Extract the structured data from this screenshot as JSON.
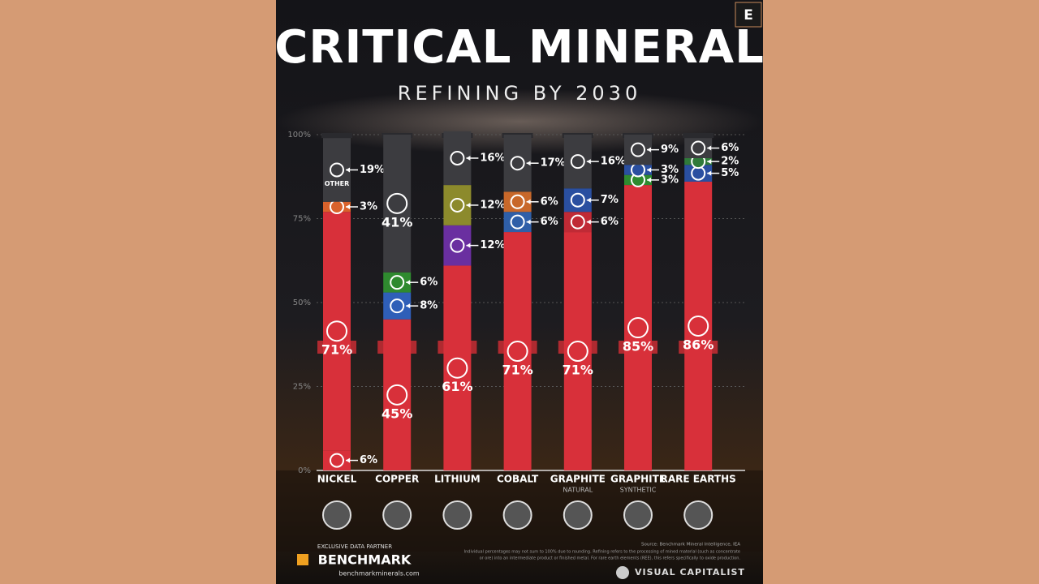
{
  "chart_data": {
    "type": "stacked-bar",
    "title": "CRITICAL MINERAL",
    "subtitle": "REFINING BY 2030",
    "categories": [
      "NICKEL",
      "COPPER",
      "LITHIUM",
      "COBALT",
      "GRAPHITE",
      "GRAPHITE",
      "RARE EARTHS"
    ],
    "sublabels": [
      null,
      null,
      null,
      null,
      "NATURAL",
      "SYNTHETIC",
      null
    ],
    "stacks": [
      [
        {
          "value": 6,
          "label": "6%",
          "color": "#d8303a"
        },
        {
          "value": 71,
          "label": "71%",
          "color": "#d8303a"
        },
        {
          "value": 3,
          "label": "3%",
          "color": "#d9622b"
        },
        {
          "value": 19,
          "label": "19%",
          "color": "#3c3c40",
          "note": "OTHER"
        }
      ],
      [
        {
          "value": 45,
          "label": "45%",
          "color": "#d8303a"
        },
        {
          "value": 8,
          "label": "8%",
          "color": "#2f5fb8"
        },
        {
          "value": 6,
          "label": "6%",
          "color": "#2f8a2f"
        },
        {
          "value": 41,
          "label": "41%",
          "color": "#3c3c40"
        }
      ],
      [
        {
          "value": 61,
          "label": "61%",
          "color": "#d8303a"
        },
        {
          "value": 12,
          "label": "12%",
          "color": "#6a2fa0"
        },
        {
          "value": 12,
          "label": "12%",
          "color": "#8c8a2c"
        },
        {
          "value": 16,
          "label": "16%",
          "color": "#3c3c40"
        }
      ],
      [
        {
          "value": 71,
          "label": "71%",
          "color": "#d8303a"
        },
        {
          "value": 6,
          "label": "6%",
          "color": "#2f5fa8"
        },
        {
          "value": 6,
          "label": "6%",
          "color": "#c8682a"
        },
        {
          "value": 17,
          "label": "17%",
          "color": "#3c3c40"
        }
      ],
      [
        {
          "value": 71,
          "label": "71%",
          "color": "#d8303a"
        },
        {
          "value": 6,
          "label": "6%",
          "color": "#c02a35"
        },
        {
          "value": 7,
          "label": "7%",
          "color": "#2a4fa0"
        },
        {
          "value": 16,
          "label": "16%",
          "color": "#3c3c40"
        }
      ],
      [
        {
          "value": 85,
          "label": "85%",
          "color": "#d8303a"
        },
        {
          "value": 3,
          "label": "3%",
          "color": "#2f8a2f"
        },
        {
          "value": 3,
          "label": "3%",
          "color": "#2a4fa0"
        },
        {
          "value": 9,
          "label": "9%",
          "color": "#3c3c40"
        }
      ],
      [
        {
          "value": 86,
          "label": "86%",
          "color": "#d8303a"
        },
        {
          "value": 5,
          "label": "5%",
          "color": "#2a4fa0"
        },
        {
          "value": 2,
          "label": "2%",
          "color": "#2f7a3a"
        },
        {
          "value": 6,
          "label": "6%",
          "color": "#3c3c40"
        }
      ]
    ],
    "ylim": [
      0,
      100
    ],
    "yticks": [
      {
        "value": 0,
        "label": "0%"
      },
      {
        "value": 25,
        "label": "25%"
      },
      {
        "value": 50,
        "label": "50%"
      },
      {
        "value": 75,
        "label": "75%"
      },
      {
        "value": 100,
        "label": "100%"
      }
    ],
    "grid": true
  },
  "footer": {
    "partner_caption": "EXCLUSIVE DATA PARTNER",
    "partner": "BENCHMARK",
    "partner_url": "benchmarkminerals.com",
    "source": "Source: Benchmark Mineral Intelligence, IEA",
    "note_1": "Individual percentages may not sum to 100% due to rounding. Refining refers to the processing of mined material (such as concentrate",
    "note_2": "or ore) into an intermediate product or finished metal. For rare earth elements (REE), this refers specifically to oxide production.",
    "publisher": "VISUAL CAPITALIST",
    "badge": "E"
  }
}
